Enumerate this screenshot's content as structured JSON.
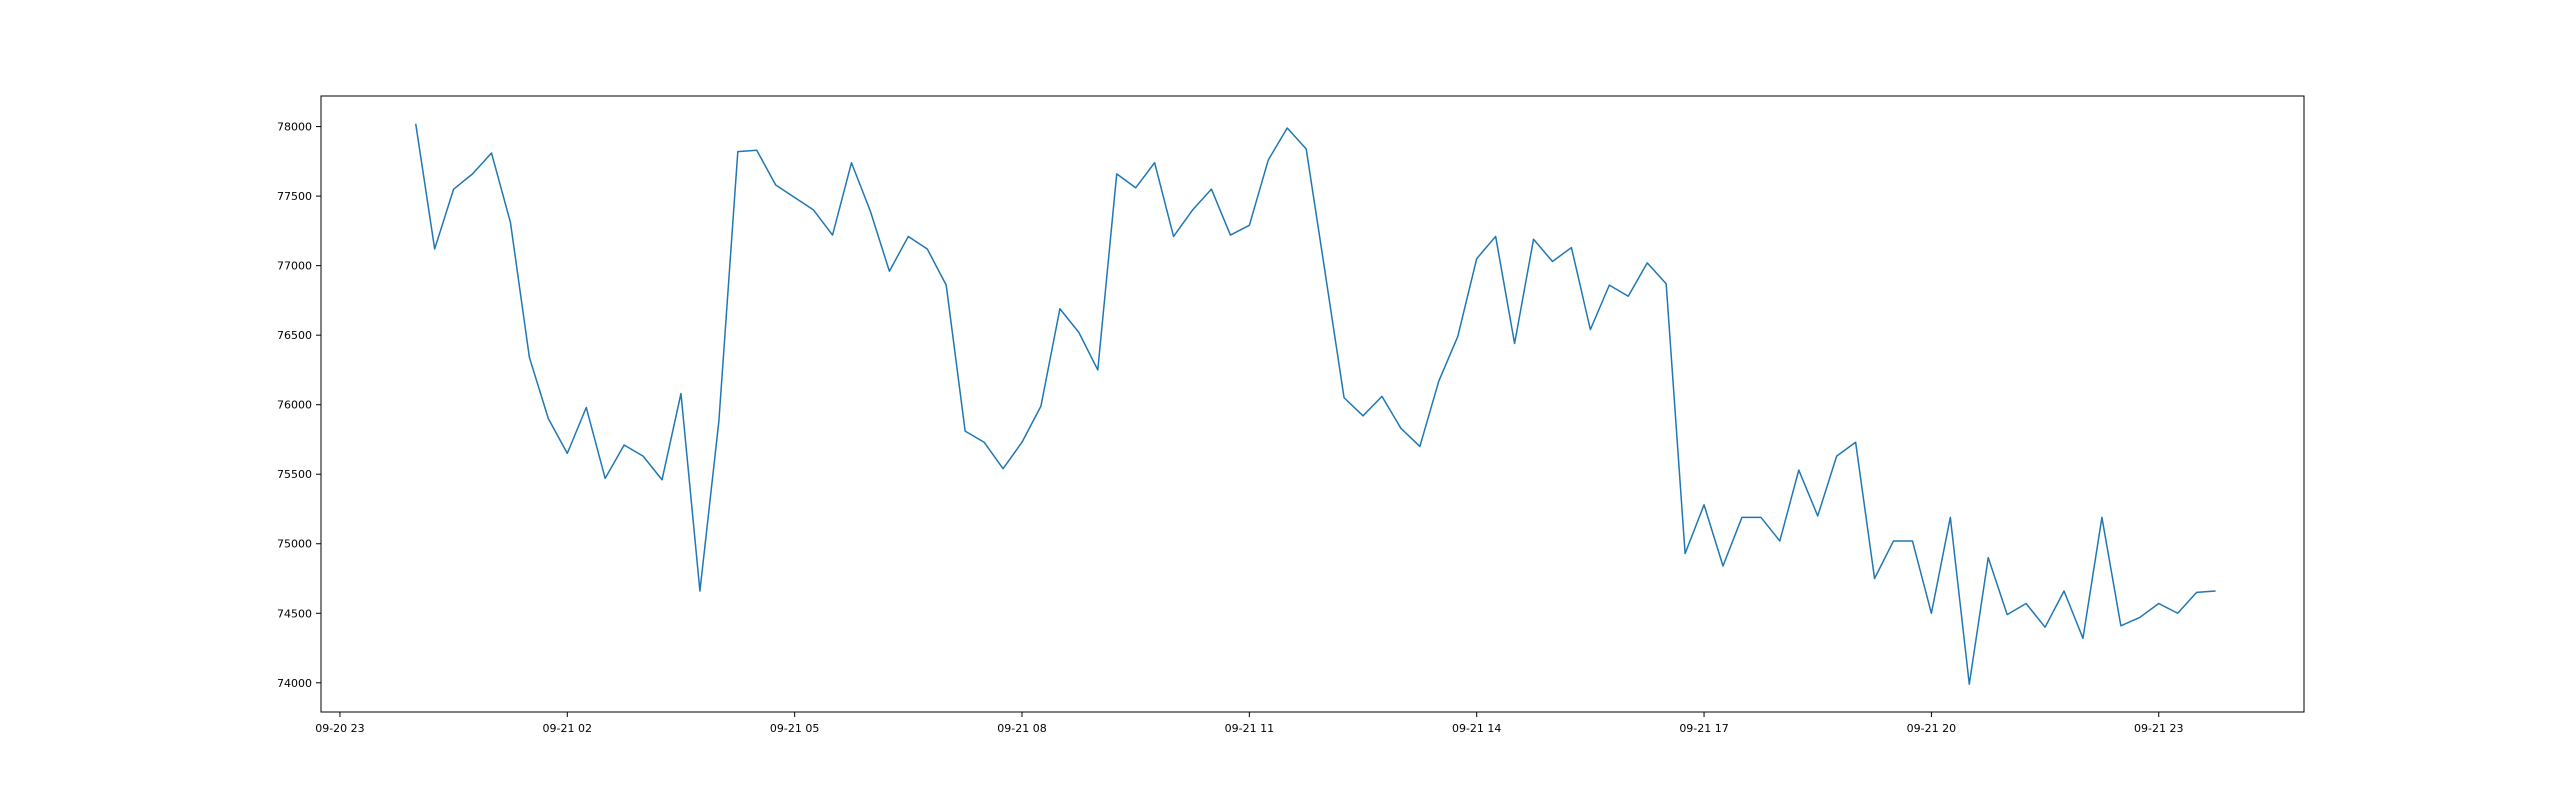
{
  "chart_data": {
    "type": "line",
    "title": "",
    "xlabel": "",
    "ylabel": "",
    "x_tick_labels": [
      "09-20 23",
      "09-21 02",
      "09-21 05",
      "09-21 08",
      "09-21 11",
      "09-21 14",
      "09-21 17",
      "09-21 20",
      "09-21 23"
    ],
    "y_tick_labels": [
      "74000",
      "74500",
      "75000",
      "75500",
      "76000",
      "76500",
      "77000",
      "77500",
      "78000"
    ],
    "y_ticks": [
      74000,
      74500,
      75000,
      75500,
      76000,
      76500,
      77000,
      77500,
      78000
    ],
    "ylim": [
      73790,
      78220
    ],
    "xlim": [
      "2024-09-20 22:45",
      "2024-09-22 00:55"
    ],
    "grid": false,
    "colors": {
      "line": "#1f77b4",
      "axes": "#000000",
      "background": "#ffffff"
    },
    "series": [
      {
        "name": "",
        "x": [
          "2024-09-21 00:00",
          "2024-09-21 00:15",
          "2024-09-21 00:30",
          "2024-09-21 00:45",
          "2024-09-21 01:00",
          "2024-09-21 01:15",
          "2024-09-21 01:30",
          "2024-09-21 01:45",
          "2024-09-21 02:00",
          "2024-09-21 02:15",
          "2024-09-21 02:30",
          "2024-09-21 02:45",
          "2024-09-21 03:00",
          "2024-09-21 03:15",
          "2024-09-21 03:30",
          "2024-09-21 03:45",
          "2024-09-21 04:00",
          "2024-09-21 04:15",
          "2024-09-21 04:30",
          "2024-09-21 04:45",
          "2024-09-21 05:00",
          "2024-09-21 05:15",
          "2024-09-21 05:30",
          "2024-09-21 05:45",
          "2024-09-21 06:00",
          "2024-09-21 06:15",
          "2024-09-21 06:30",
          "2024-09-21 06:45",
          "2024-09-21 07:00",
          "2024-09-21 07:15",
          "2024-09-21 07:30",
          "2024-09-21 07:45",
          "2024-09-21 08:00",
          "2024-09-21 08:15",
          "2024-09-21 08:30",
          "2024-09-21 08:45",
          "2024-09-21 09:00",
          "2024-09-21 09:15",
          "2024-09-21 09:30",
          "2024-09-21 09:45",
          "2024-09-21 10:00",
          "2024-09-21 10:15",
          "2024-09-21 10:30",
          "2024-09-21 10:45",
          "2024-09-21 11:00",
          "2024-09-21 11:15",
          "2024-09-21 11:30",
          "2024-09-21 11:45",
          "2024-09-21 12:00",
          "2024-09-21 12:15",
          "2024-09-21 12:30",
          "2024-09-21 12:45",
          "2024-09-21 13:00",
          "2024-09-21 13:15",
          "2024-09-21 13:30",
          "2024-09-21 13:45",
          "2024-09-21 14:00",
          "2024-09-21 14:15",
          "2024-09-21 14:30",
          "2024-09-21 14:45",
          "2024-09-21 15:00",
          "2024-09-21 15:15",
          "2024-09-21 15:30",
          "2024-09-21 15:45",
          "2024-09-21 16:00",
          "2024-09-21 16:15",
          "2024-09-21 16:30",
          "2024-09-21 16:45",
          "2024-09-21 17:00",
          "2024-09-21 17:15",
          "2024-09-21 17:30",
          "2024-09-21 17:45",
          "2024-09-21 18:00",
          "2024-09-21 18:15",
          "2024-09-21 18:30",
          "2024-09-21 18:45",
          "2024-09-21 19:00",
          "2024-09-21 19:15",
          "2024-09-21 19:30",
          "2024-09-21 19:45",
          "2024-09-21 20:00",
          "2024-09-21 20:15",
          "2024-09-21 20:30",
          "2024-09-21 20:45",
          "2024-09-21 21:00",
          "2024-09-21 21:15",
          "2024-09-21 21:30",
          "2024-09-21 21:45",
          "2024-09-21 22:00",
          "2024-09-21 22:15",
          "2024-09-21 22:30",
          "2024-09-21 22:45",
          "2024-09-21 23:00",
          "2024-09-21 23:15",
          "2024-09-21 23:30",
          "2024-09-21 23:45"
        ],
        "y": [
          78020,
          77120,
          77550,
          77660,
          77810,
          77310,
          76340,
          75900,
          75650,
          75980,
          75470,
          75710,
          75630,
          75460,
          76080,
          74660,
          75880,
          77820,
          77830,
          77580,
          77490,
          77400,
          77220,
          77740,
          77390,
          76960,
          77210,
          77120,
          76860,
          75810,
          75730,
          75540,
          75730,
          75990,
          76690,
          76520,
          76250,
          77660,
          77560,
          77740,
          77210,
          77400,
          77550,
          77220,
          77290,
          77760,
          77990,
          77840,
          76950,
          76050,
          75920,
          76060,
          75830,
          75700,
          76170,
          76490,
          77050,
          77210,
          76440,
          77190,
          77030,
          77130,
          76540,
          76860,
          76780,
          77020,
          76870,
          74930,
          75280,
          74840,
          75190,
          75190,
          75020,
          75530,
          75200,
          75630,
          75730,
          74750,
          75020,
          75020,
          74500,
          75190,
          73990,
          74900,
          74490,
          74570,
          74400,
          74660,
          74320,
          75190,
          74410,
          74470,
          74570,
          74500,
          74650,
          74660
        ]
      }
    ]
  }
}
